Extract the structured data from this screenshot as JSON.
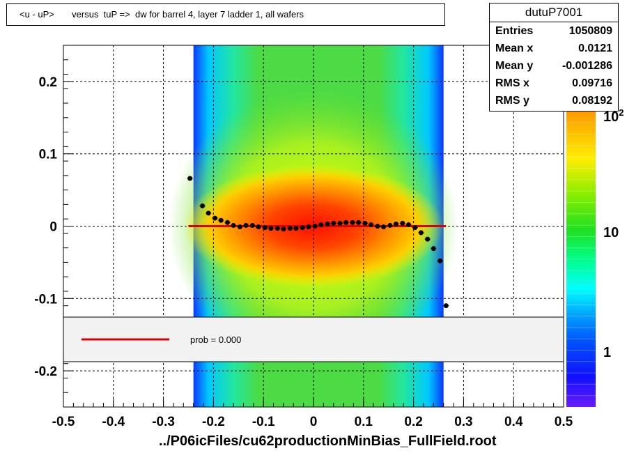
{
  "title": "<u - uP>       versus  tuP =>  dw for barrel 4, layer 7 ladder 1, all wafers",
  "footer": "../P06icFiles/cu62productionMinBias_FullField.root",
  "stats": {
    "name": "dutuP7001",
    "rows": [
      {
        "label": "Entries",
        "value": "1050809"
      },
      {
        "label": "Mean x",
        "value": "0.0121"
      },
      {
        "label": "Mean y",
        "value": "-0.001286"
      },
      {
        "label": "RMS x",
        "value": "0.09716"
      },
      {
        "label": "RMS y",
        "value": "0.08192"
      }
    ]
  },
  "legend": {
    "fit_label": "prob = 0.000"
  },
  "colors": {
    "fit_line": "#dd0000",
    "profile_points": "#000000",
    "profile_open": "#cc00cc"
  },
  "chart_data": {
    "type": "heatmap",
    "title": "<u - uP>       versus  tuP =>  dw for barrel 4, layer 7 ladder 1, all wafers",
    "xlabel": "../P06icFiles/cu62productionMinBias_FullField.root",
    "ylabel": "",
    "xlim": [
      -0.5,
      0.5
    ],
    "ylim": [
      -0.25,
      0.25
    ],
    "x_ticks": [
      "-0.5",
      "-0.4",
      "-0.3",
      "-0.2",
      "-0.1",
      "0",
      "0.1",
      "0.2",
      "0.3",
      "0.4",
      "0.5"
    ],
    "y_ticks": [
      "-0.2",
      "-0.1",
      "0",
      "0.1",
      "0.2"
    ],
    "z_scale": "log",
    "z_ticks": [
      "1",
      "10",
      "10^2"
    ],
    "grid": true,
    "populated_x_range": [
      -0.24,
      0.26
    ],
    "profile": {
      "x": [
        -0.247,
        -0.222,
        -0.21,
        -0.197,
        -0.185,
        -0.172,
        -0.16,
        -0.147,
        -0.135,
        -0.122,
        -0.11,
        -0.097,
        -0.085,
        -0.072,
        -0.06,
        -0.047,
        -0.035,
        -0.022,
        -0.01,
        0.003,
        0.015,
        0.028,
        0.04,
        0.053,
        0.065,
        0.078,
        0.09,
        0.103,
        0.115,
        0.128,
        0.14,
        0.153,
        0.165,
        0.178,
        0.19,
        0.203,
        0.215,
        0.228,
        0.24,
        0.253,
        0.265
      ],
      "y": [
        0.066,
        0.028,
        0.018,
        0.011,
        0.008,
        0.005,
        0.001,
        -0.001,
        0.001,
        0.001,
        -0.001,
        -0.002,
        -0.003,
        -0.003,
        -0.004,
        -0.003,
        -0.003,
        -0.002,
        -0.001,
        0.0,
        0.002,
        0.003,
        0.004,
        0.004,
        0.005,
        0.005,
        0.005,
        0.004,
        0.002,
        0.0,
        -0.001,
        0.001,
        0.003,
        0.004,
        0.002,
        -0.002,
        -0.009,
        -0.018,
        -0.031,
        -0.048,
        -0.11
      ]
    },
    "fit": {
      "x": [
        -0.25,
        0.265
      ],
      "y": [
        0.0,
        0.0
      ]
    }
  }
}
